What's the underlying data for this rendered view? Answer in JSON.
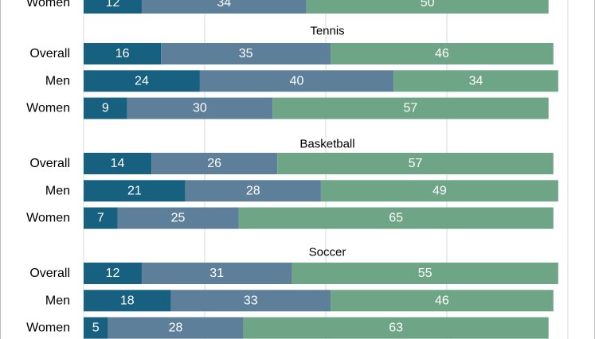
{
  "colors": {
    "series_1": "#17607f",
    "series_2": "#5e7f99",
    "series_3": "#6ea586",
    "gridline": "#d9d9d9",
    "frame": "#bdbdbd",
    "text": "#000000",
    "bar_label": "#ffffff"
  },
  "chart_data": {
    "type": "bar",
    "orientation": "horizontal",
    "stacked": true,
    "xlim": [
      0,
      100
    ],
    "grid": true,
    "legend": "none",
    "categories": [
      "Overall",
      "Men",
      "Women"
    ],
    "panels": [
      {
        "title": "",
        "rows": [
          {
            "label": "Women",
            "values": [
              12,
              34,
              50
            ]
          }
        ]
      },
      {
        "title": "Tennis",
        "rows": [
          {
            "label": "Overall",
            "values": [
              16,
              35,
              46
            ]
          },
          {
            "label": "Men",
            "values": [
              24,
              40,
              34
            ]
          },
          {
            "label": "Women",
            "values": [
              9,
              30,
              57
            ]
          }
        ]
      },
      {
        "title": "Basketball",
        "rows": [
          {
            "label": "Overall",
            "values": [
              14,
              26,
              57
            ]
          },
          {
            "label": "Men",
            "values": [
              21,
              28,
              49
            ]
          },
          {
            "label": "Women",
            "values": [
              7,
              25,
              65
            ]
          }
        ]
      },
      {
        "title": "Soccer",
        "rows": [
          {
            "label": "Overall",
            "values": [
              12,
              31,
              55
            ]
          },
          {
            "label": "Men",
            "values": [
              18,
              33,
              46
            ]
          },
          {
            "label": "Women",
            "values": [
              5,
              28,
              63
            ]
          }
        ]
      }
    ]
  }
}
